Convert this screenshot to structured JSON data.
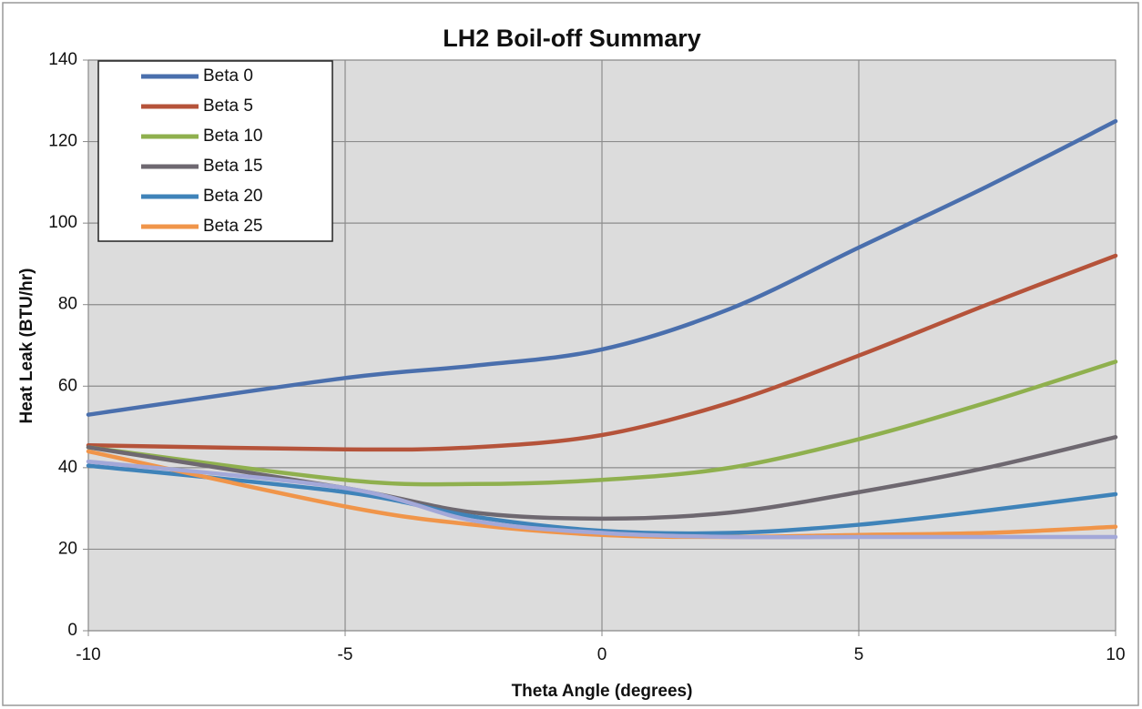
{
  "chart_data": {
    "type": "line",
    "title": "LH2 Boil-off Summary",
    "x_label": "Theta Angle (degrees)",
    "y_label": "Heat Leak (BTU/hr)",
    "x": [
      -10,
      -5,
      -2.5,
      0,
      2.5,
      5,
      7.5,
      10
    ],
    "series": [
      {
        "name": "Beta 0",
        "color": "#4a6fad",
        "values": [
          53,
          62,
          65,
          69,
          79,
          94,
          109,
          125
        ]
      },
      {
        "name": "Beta 5",
        "color": "#b5533a",
        "values": [
          45.5,
          44.5,
          45,
          48,
          56,
          67.5,
          80,
          92
        ]
      },
      {
        "name": "Beta 10",
        "color": "#8fb04e",
        "values": [
          45,
          37,
          36,
          37,
          40,
          47,
          56,
          66
        ]
      },
      {
        "name": "Beta 15",
        "color": "#6e6870",
        "values": [
          45,
          35,
          29,
          27.5,
          29,
          34,
          40,
          47.5
        ]
      },
      {
        "name": "Beta 20",
        "color": "#3f83b9",
        "values": [
          40.5,
          34,
          28,
          24.5,
          24,
          26,
          29.5,
          33.5
        ]
      },
      {
        "name": "Beta 25",
        "color": "#f0954a",
        "values": [
          44,
          30.5,
          26,
          23.5,
          23,
          23.5,
          24,
          25.5
        ]
      },
      {
        "color": "#a3a8d8",
        "values": [
          41.5,
          35,
          27,
          24,
          23,
          23,
          23,
          23
        ]
      }
    ],
    "xlim": [
      -10,
      10
    ],
    "xticks": [
      -10,
      -5,
      0,
      5,
      10
    ],
    "ylim": [
      0,
      140
    ],
    "yticks": [
      0,
      20,
      40,
      60,
      80,
      100,
      120,
      140
    ],
    "grid": true,
    "legend": "upper left"
  }
}
